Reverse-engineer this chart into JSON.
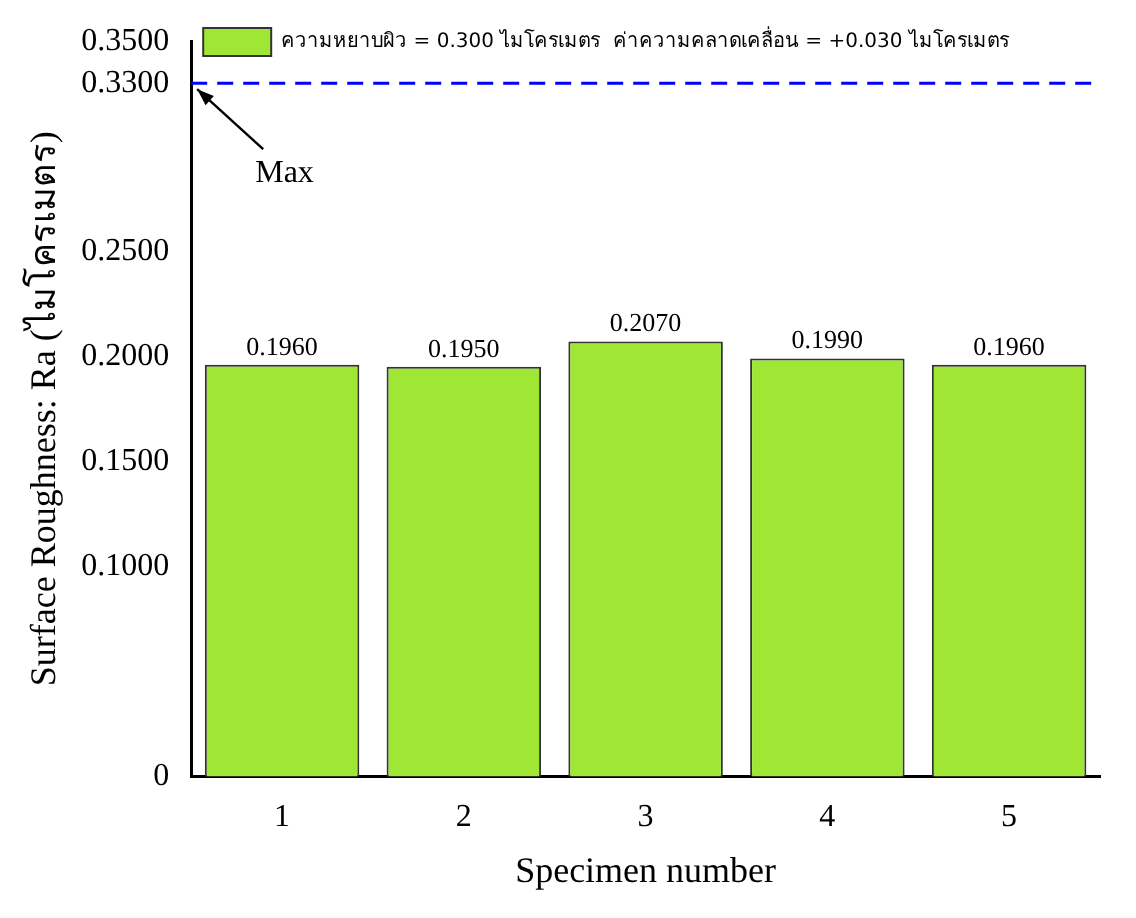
{
  "chart_data": {
    "type": "bar",
    "xlabel": "Specimen number",
    "ylabel": "Surface Roughness: Ra (ไมโครเมตร)",
    "categories": [
      "1",
      "2",
      "3",
      "4",
      "5"
    ],
    "series": [
      {
        "name": "ความหยาบผิว = 0.300 ไมโครเมตร  ค่าความคลาดเคลื่อน = +0.030 ไมโครเมตร",
        "color": "#a0e635",
        "values": [
          0.196,
          0.195,
          0.207,
          0.199,
          0.196
        ],
        "value_labels": [
          "0.1960",
          "0.1950",
          "0.2070",
          "0.1990",
          "0.1960"
        ]
      }
    ],
    "ylim": [
      0,
      0.35
    ],
    "yticks": [
      {
        "value": 0,
        "label": "0"
      },
      {
        "value": 0.1,
        "label": "0.1000"
      },
      {
        "value": 0.15,
        "label": "0.1500"
      },
      {
        "value": 0.2,
        "label": "0.2000"
      },
      {
        "value": 0.25,
        "label": "0.2500"
      },
      {
        "value": 0.33,
        "label": "0.3300"
      },
      {
        "value": 0.35,
        "label": "0.3500"
      }
    ],
    "ref_lines": [
      {
        "axis": "y",
        "value": 0.33,
        "label": "Max",
        "color": "#0000ff",
        "line_style": "dashed"
      }
    ],
    "legend": "top left",
    "grid": false
  }
}
